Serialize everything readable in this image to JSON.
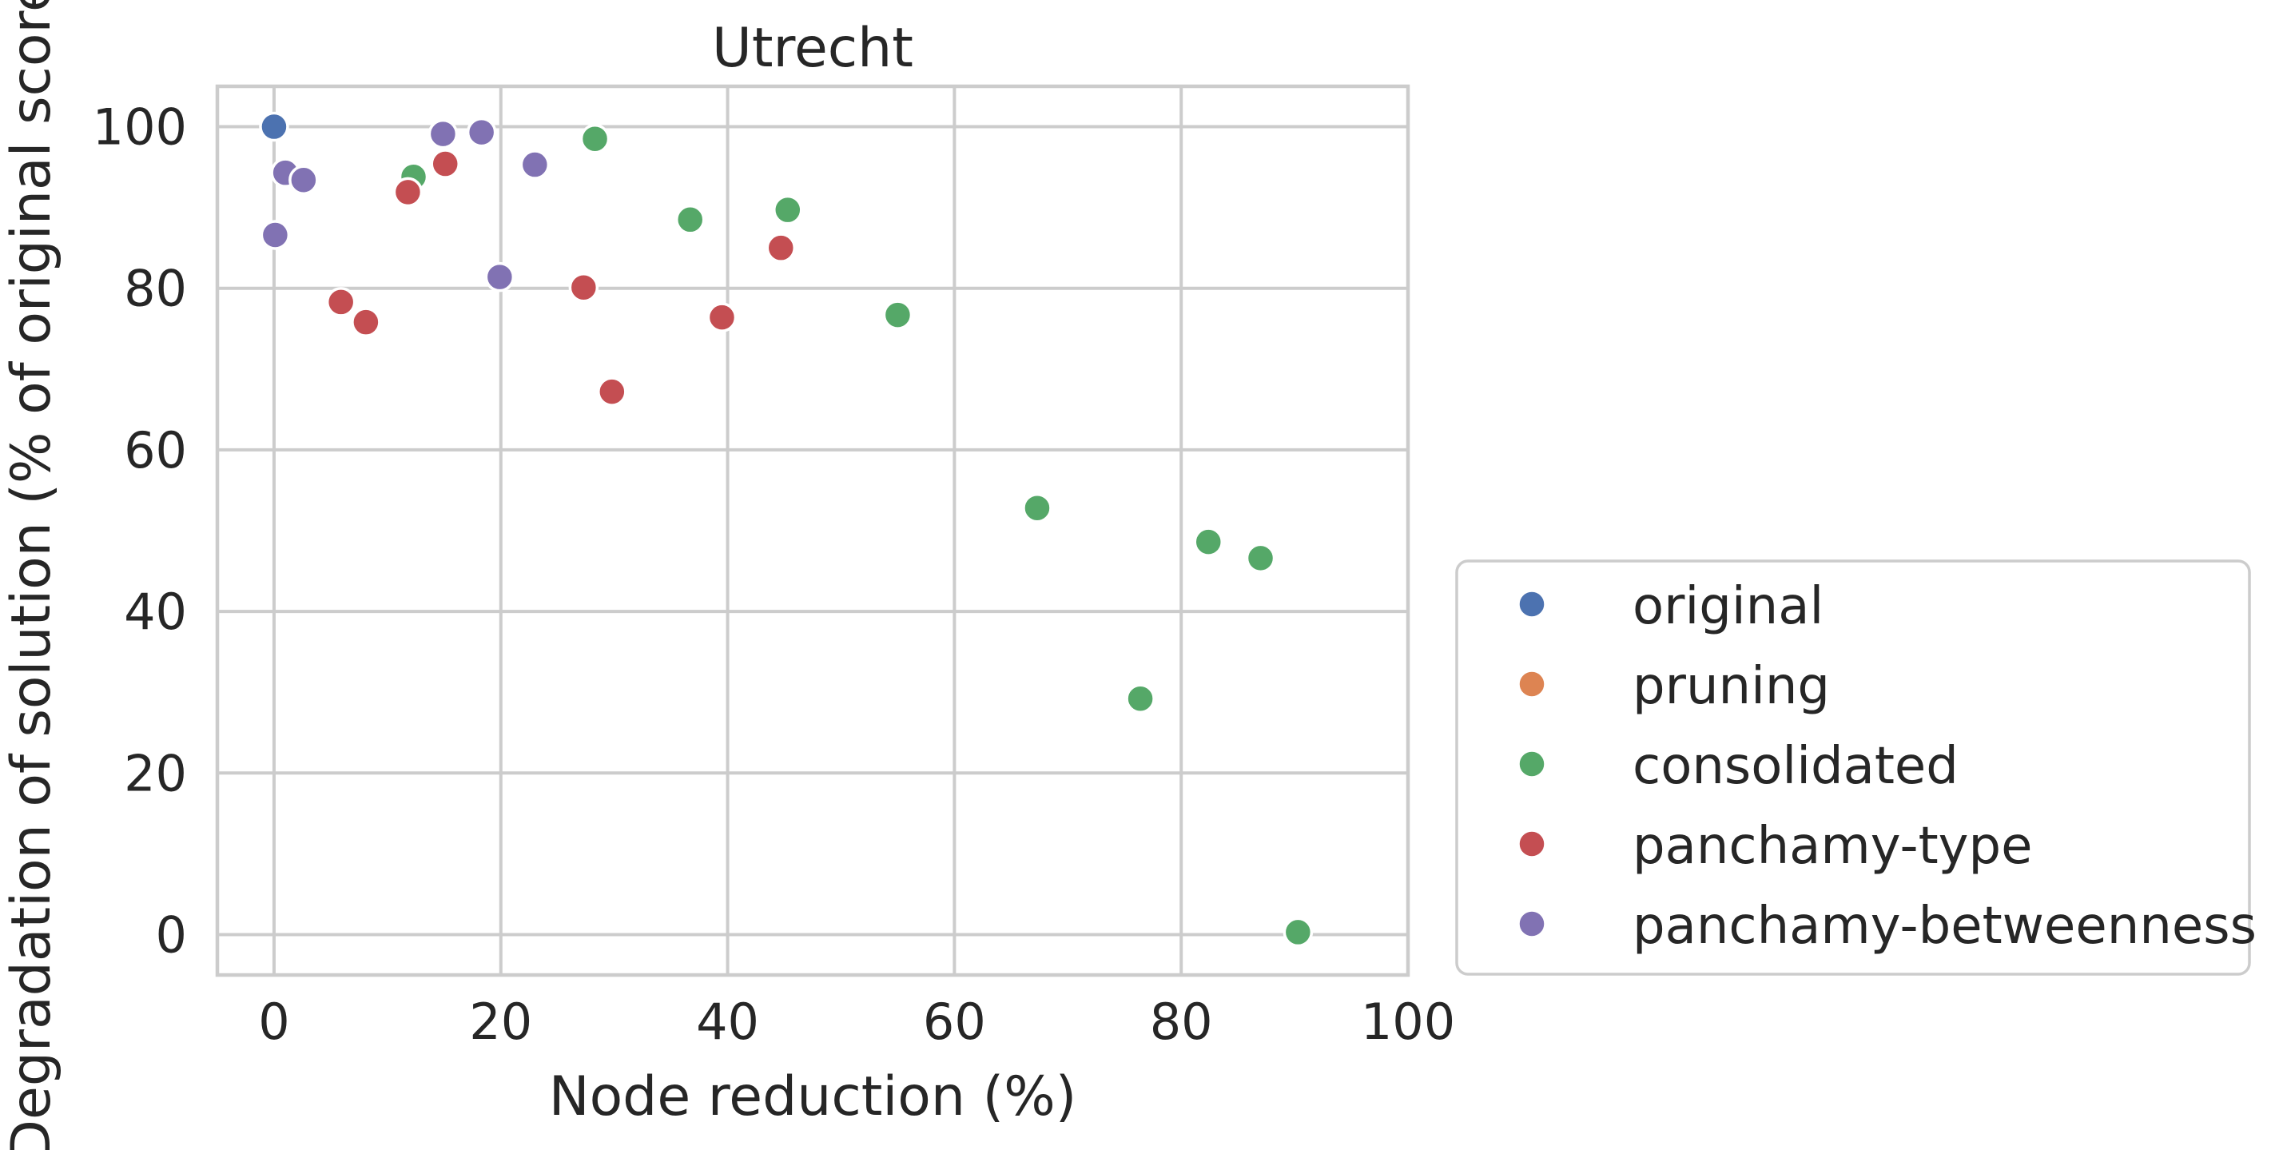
{
  "chart_data": {
    "type": "scatter",
    "title": "Utrecht",
    "xlabel": "Node reduction (%)",
    "ylabel": "Degradation of solution (% of original score)",
    "xlim": [
      -5,
      100
    ],
    "ylim": [
      -5,
      105
    ],
    "x_ticks": [
      0,
      20,
      40,
      60,
      80,
      100
    ],
    "y_ticks": [
      0,
      20,
      40,
      60,
      80,
      100
    ],
    "grid": true,
    "legend_position": "outside-lower-right",
    "series": [
      {
        "name": "original",
        "color": "#4c72b0",
        "points": [
          [
            0.0,
            100.0
          ]
        ]
      },
      {
        "name": "pruning",
        "color": "#dd8452",
        "points": []
      },
      {
        "name": "consolidated",
        "color": "#55a868",
        "points": [
          [
            12.3,
            93.8
          ],
          [
            28.3,
            98.5
          ],
          [
            36.7,
            88.5
          ],
          [
            45.3,
            89.7
          ],
          [
            55.0,
            76.7
          ],
          [
            67.3,
            52.8
          ],
          [
            76.4,
            29.2
          ],
          [
            82.4,
            48.6
          ],
          [
            87.0,
            46.6
          ],
          [
            90.3,
            0.3
          ]
        ]
      },
      {
        "name": "panchamy-type",
        "color": "#c44e52",
        "points": [
          [
            5.9,
            78.3
          ],
          [
            8.1,
            75.8
          ],
          [
            11.8,
            91.9
          ],
          [
            15.1,
            95.4
          ],
          [
            27.3,
            80.1
          ],
          [
            29.8,
            67.2
          ],
          [
            39.5,
            76.4
          ],
          [
            44.7,
            85.0
          ]
        ]
      },
      {
        "name": "panchamy-betweenness",
        "color": "#8172b3",
        "points": [
          [
            0.1,
            86.6
          ],
          [
            1.0,
            94.3
          ],
          [
            2.6,
            93.4
          ],
          [
            14.9,
            99.1
          ],
          [
            18.3,
            99.3
          ],
          [
            19.9,
            81.4
          ],
          [
            23.0,
            95.3
          ]
        ]
      }
    ]
  }
}
